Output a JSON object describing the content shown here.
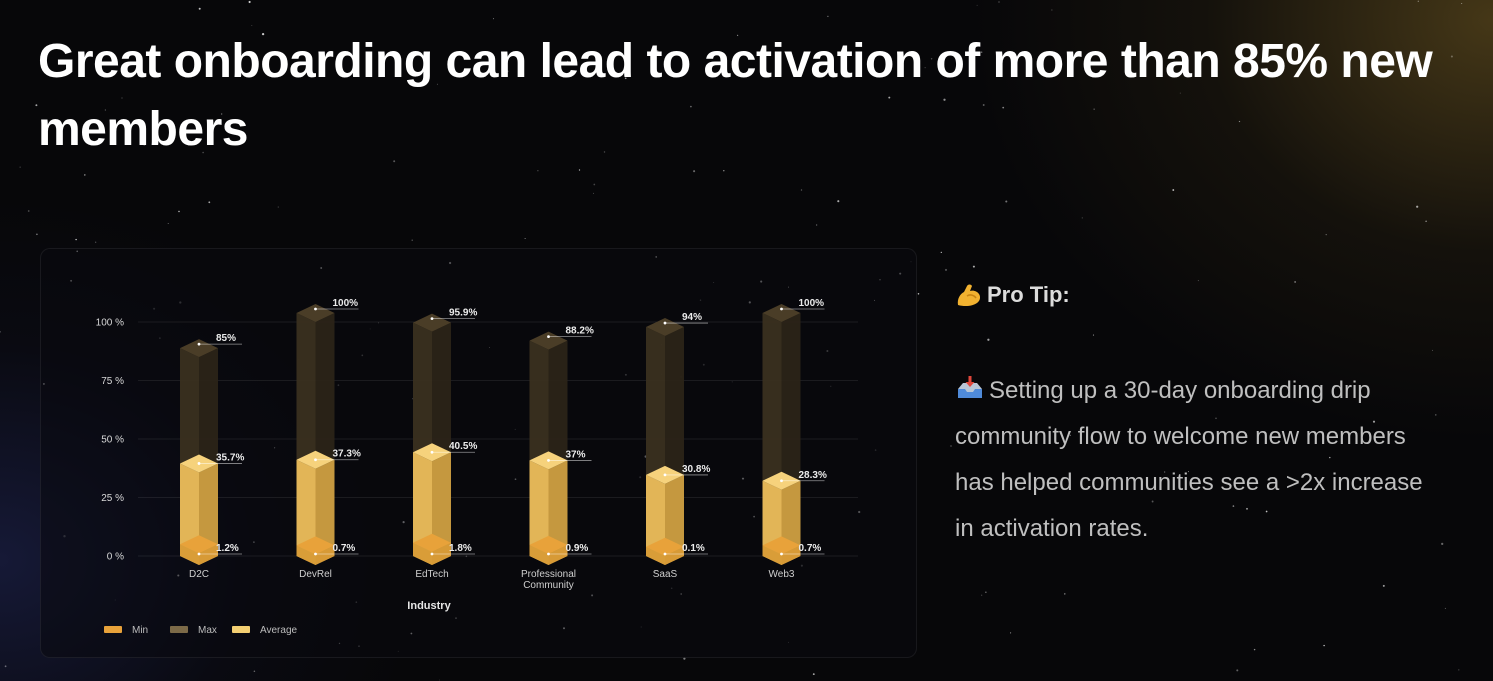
{
  "headline": "Great onboarding can lead to activation of more than 85% new members",
  "pro_tip": {
    "icon": "flexed-biceps-icon",
    "title": "Pro Tip:",
    "body_icon": "inbox-tray-icon",
    "body": "Setting up a 30-day onboarding drip community flow to welcome new members has helped communities see a >2x increase in activation rates."
  },
  "colors": {
    "min": "#e8a23a",
    "max": "#7c6a48",
    "average": "#f3cf72"
  },
  "chart_data": {
    "type": "bar",
    "xlabel": "Industry",
    "ylabel": "",
    "ylim": [
      0,
      100
    ],
    "yticks": [
      "0 %",
      "25 %",
      "50 %",
      "75 %",
      "100 %"
    ],
    "categories": [
      "D2C",
      "DevRel",
      "EdTech",
      "Professional Community",
      "SaaS",
      "Web3"
    ],
    "series": [
      {
        "name": "Min",
        "values": [
          1.2,
          0.7,
          1.8,
          0.9,
          0.1,
          0.7
        ],
        "labels": [
          "1.2%",
          "0.7%",
          "1.8%",
          "0.9%",
          "0.1%",
          "0.7%"
        ]
      },
      {
        "name": "Max",
        "values": [
          85,
          100,
          95.9,
          88.2,
          94,
          100
        ],
        "labels": [
          "85%",
          "100%",
          "95.9%",
          "88.2%",
          "94%",
          "100%"
        ]
      },
      {
        "name": "Average",
        "values": [
          35.7,
          37.3,
          40.5,
          37,
          30.8,
          28.3
        ],
        "labels": [
          "35.7%",
          "37.3%",
          "40.5%",
          "37%",
          "30.8%",
          "28.3%"
        ]
      }
    ],
    "legend": [
      "Min",
      "Max",
      "Average"
    ],
    "legend_position": "bottom-left",
    "grid": true
  }
}
